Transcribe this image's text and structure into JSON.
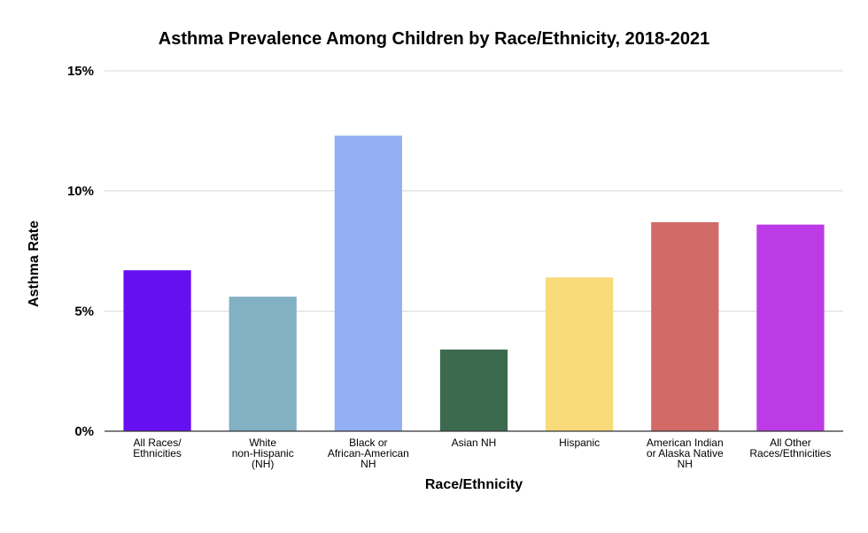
{
  "chart_data": {
    "type": "bar",
    "title": "Asthma Prevalence Among Children by Race/Ethnicity, 2018-2021",
    "xlabel": "Race/Ethnicity",
    "ylabel": "Asthma Rate",
    "ylim": [
      0,
      15
    ],
    "yticks": [
      0,
      5,
      10,
      15
    ],
    "ytick_labels": [
      "0%",
      "5%",
      "10%",
      "15%"
    ],
    "grid": true,
    "legend": "none",
    "categories": [
      [
        "All Races/",
        "Ethnicities"
      ],
      [
        "White",
        "non-Hispanic",
        "(NH)"
      ],
      [
        "Black or",
        "African-American",
        "NH"
      ],
      [
        "Asian NH"
      ],
      [
        "Hispanic"
      ],
      [
        "American Indian",
        "or Alaska Native",
        "NH"
      ],
      [
        "All Other",
        "Races/Ethnicities"
      ]
    ],
    "values": [
      6.7,
      5.6,
      12.3,
      3.4,
      6.4,
      8.7,
      8.6
    ],
    "colors": [
      "#6610f2",
      "#82b1c3",
      "#93b0f4",
      "#3b6a4f",
      "#f8da7a",
      "#d26a68",
      "#bd3be6"
    ]
  }
}
